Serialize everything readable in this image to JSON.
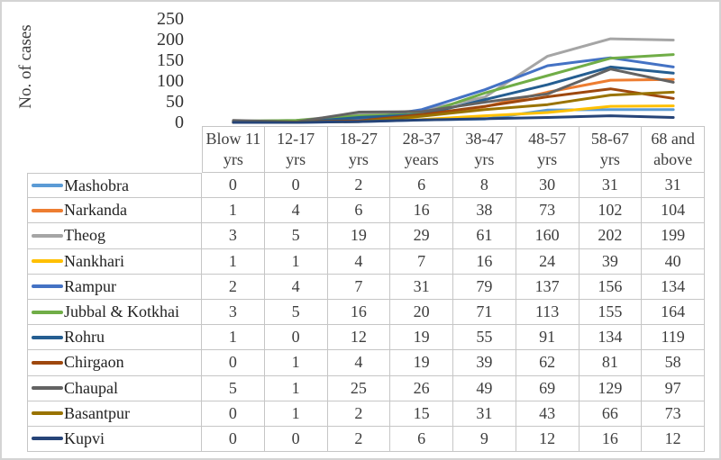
{
  "chart_data": {
    "type": "line",
    "title": "",
    "xlabel": "",
    "ylabel": "No. of cases",
    "ylim": [
      0,
      250
    ],
    "y_ticks": [
      0,
      50,
      100,
      150,
      200,
      250
    ],
    "grid": false,
    "legend_position": "left-of-data-table",
    "categories": [
      "Blow 11 yrs",
      "12-17 yrs",
      "18-27 yrs",
      "28-37 years",
      "38-47 yrs",
      "48-57 yrs",
      "58-67 yrs",
      "68 and above"
    ],
    "series": [
      {
        "name": "Mashobra",
        "color": "#5B9BD5",
        "values": [
          0,
          0,
          2,
          6,
          8,
          30,
          31,
          31
        ]
      },
      {
        "name": "Narkanda",
        "color": "#ED7D31",
        "values": [
          1,
          4,
          6,
          16,
          38,
          73,
          102,
          104
        ]
      },
      {
        "name": "Theog",
        "color": "#A5A5A5",
        "values": [
          3,
          5,
          19,
          29,
          61,
          160,
          202,
          199
        ]
      },
      {
        "name": "Nankhari",
        "color": "#FFC000",
        "values": [
          1,
          1,
          4,
          7,
          16,
          24,
          39,
          40
        ]
      },
      {
        "name": "Rampur",
        "color": "#4472C4",
        "values": [
          2,
          4,
          7,
          31,
          79,
          137,
          156,
          134
        ]
      },
      {
        "name": "Jubbal & Kotkhai",
        "color": "#70AD47",
        "values": [
          3,
          5,
          16,
          20,
          71,
          113,
          155,
          164
        ]
      },
      {
        "name": "Rohru",
        "color": "#255E91",
        "values": [
          1,
          0,
          12,
          19,
          55,
          91,
          134,
          119
        ]
      },
      {
        "name": "Chirgaon",
        "color": "#9E480E",
        "values": [
          0,
          1,
          4,
          19,
          39,
          62,
          81,
          58
        ]
      },
      {
        "name": "Chaupal",
        "color": "#636363",
        "values": [
          5,
          1,
          25,
          26,
          49,
          69,
          129,
          97
        ]
      },
      {
        "name": "Basantpur",
        "color": "#997300",
        "values": [
          0,
          1,
          2,
          15,
          31,
          43,
          66,
          73
        ]
      },
      {
        "name": "Kupvi",
        "color": "#264478",
        "values": [
          0,
          0,
          2,
          6,
          9,
          12,
          16,
          12
        ]
      }
    ]
  }
}
